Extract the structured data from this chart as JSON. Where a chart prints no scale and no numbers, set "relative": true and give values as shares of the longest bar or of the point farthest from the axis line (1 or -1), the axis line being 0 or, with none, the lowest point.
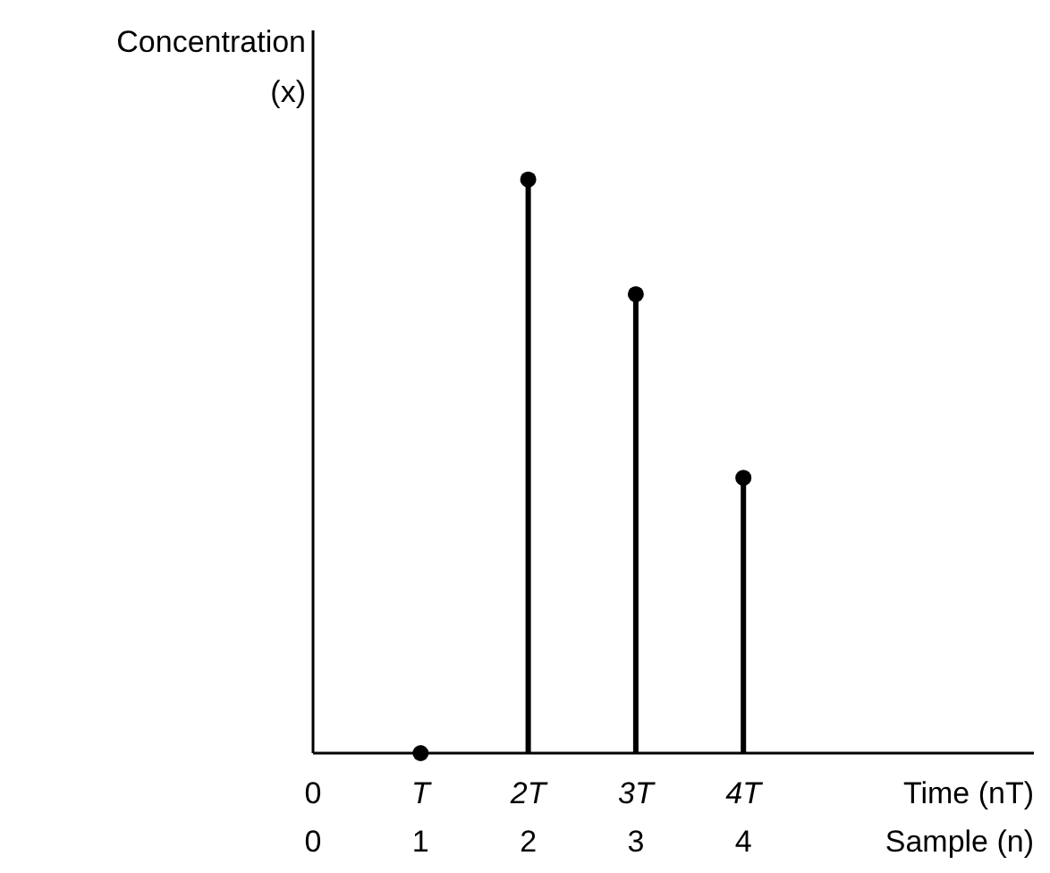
{
  "chart_data": {
    "type": "lollipop",
    "relative": true,
    "ylabel": "Concentration (x)",
    "xlabel": "Time (nT)",
    "x2label": "Sample (n)",
    "x": [
      1,
      2,
      3,
      4
    ],
    "values": [
      0,
      1,
      0.8,
      0.48
    ],
    "color": "#000000",
    "marker": "circle",
    "xlim": [
      0,
      6.7
    ],
    "xticks": [
      0,
      {
        "value": 1,
        "label": "T"
      },
      {
        "value": 2,
        "label": "2T"
      },
      {
        "value": 3,
        "label": "3T"
      },
      {
        "value": 4,
        "label": "4T"
      }
    ],
    "x2lim": [
      0,
      6.7
    ],
    "x2ticks": [
      0,
      1,
      2,
      3,
      4
    ]
  }
}
